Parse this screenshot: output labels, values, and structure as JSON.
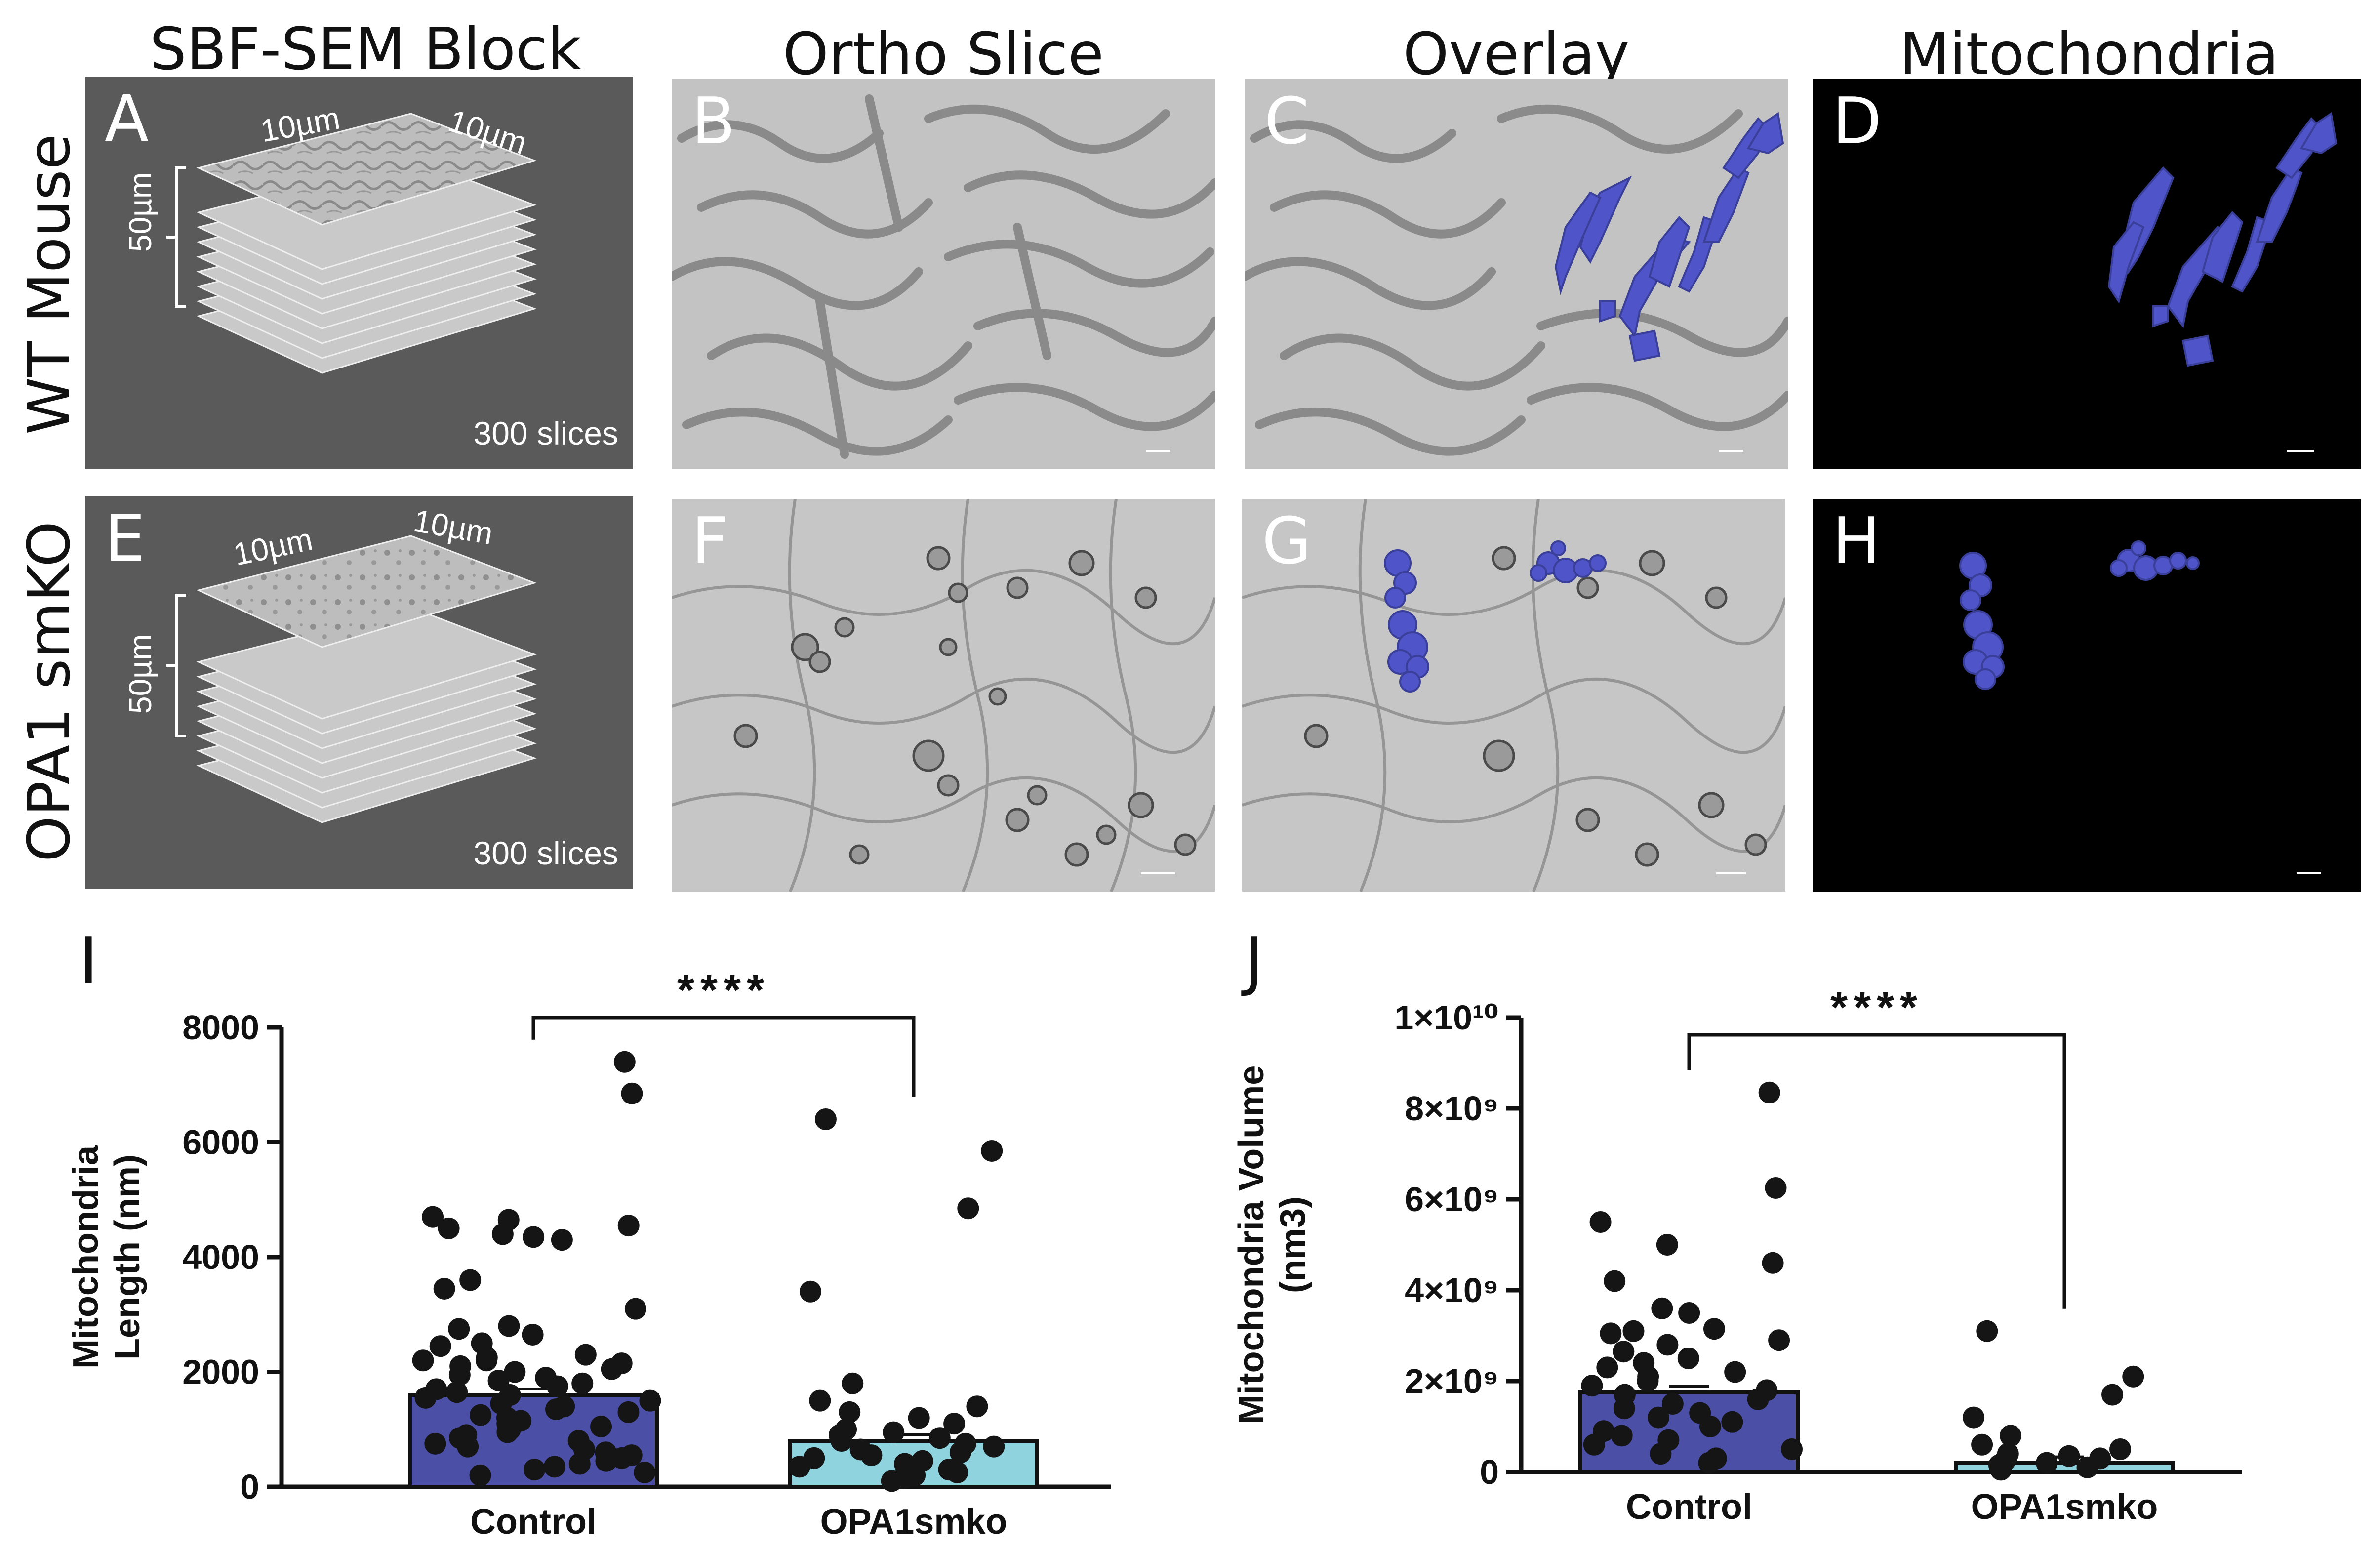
{
  "columns": [
    "SBF-SEM Block",
    "Ortho Slice",
    "Overlay",
    "Mitochondria"
  ],
  "rows": [
    "WT Mouse",
    "OPA1 smKO"
  ],
  "panels": {
    "A": "A",
    "B": "B",
    "C": "C",
    "D": "D",
    "E": "E",
    "F": "F",
    "G": "G",
    "H": "H"
  },
  "block": {
    "dim_x": "10µm",
    "dim_y": "10µm",
    "dim_z": "50µm",
    "slices": "300 slices"
  },
  "colors": {
    "mito": "#4f55c8",
    "control_bar": "#4b4fa6",
    "opa1_bar": "#8fd3df",
    "block_bg": "#5a5a5a",
    "em_gray": "#c4c4c4"
  },
  "chart_data": [
    {
      "panel": "I",
      "type": "bar",
      "categories": [
        "Control",
        "OPA1smko"
      ],
      "values": [
        1600,
        800
      ],
      "ylabel": "Mitochondria Length (nm)",
      "ylabel_lines": [
        "Mitochondria",
        "Length (nm)"
      ],
      "ylim": [
        0,
        8000
      ],
      "yticks": [
        "0",
        "2000",
        "4000",
        "6000",
        "8000"
      ],
      "significance": "****",
      "points": {
        "Control": [
          7400,
          6850,
          4700,
          4650,
          4550,
          4500,
          4400,
          4350,
          4300,
          3600,
          3450,
          3100,
          2800,
          2750,
          2650,
          2500,
          2450,
          2300,
          2250,
          2200,
          2200,
          2150,
          2100,
          2050,
          2000,
          1950,
          1900,
          1850,
          1800,
          1750,
          1700,
          1650,
          1600,
          1550,
          1500,
          1450,
          1400,
          1350,
          1300,
          1250,
          1200,
          1150,
          1100,
          1050,
          1000,
          950,
          900,
          850,
          800,
          750,
          700,
          650,
          600,
          550,
          500,
          450,
          400,
          350,
          300,
          250,
          200
        ],
        "OPA1smko": [
          6400,
          5850,
          4850,
          3400,
          1800,
          1500,
          1400,
          1300,
          1200,
          1100,
          1000,
          950,
          900,
          850,
          800,
          750,
          700,
          650,
          600,
          550,
          500,
          450,
          400,
          350,
          300,
          250,
          200,
          150,
          100
        ]
      }
    },
    {
      "panel": "J",
      "type": "bar",
      "categories": [
        "Control",
        "OPA1smko"
      ],
      "values": [
        1750000000,
        200000000
      ],
      "ylabel": "Mitochondria Volume (nm3)",
      "ylabel_lines": [
        "Mitochondria Volume",
        "(nm3)"
      ],
      "ylim": [
        0,
        10000000000
      ],
      "yticks": [
        "0",
        "2×10⁹",
        "4×10⁹",
        "6×10⁹",
        "8×10⁹",
        "1×10¹⁰"
      ],
      "significance": "****",
      "points": {
        "Control": [
          8350000000,
          6250000000,
          5500000000,
          5000000000,
          4600000000,
          4200000000,
          3600000000,
          3500000000,
          3150000000,
          3100000000,
          3050000000,
          2900000000,
          2800000000,
          2650000000,
          2500000000,
          2400000000,
          2300000000,
          2200000000,
          2100000000,
          2000000000,
          1900000000,
          1800000000,
          1700000000,
          1600000000,
          1500000000,
          1400000000,
          1300000000,
          1200000000,
          1100000000,
          1000000000,
          900000000,
          800000000,
          700000000,
          600000000,
          500000000,
          400000000,
          300000000,
          200000000
        ],
        "OPA1smko": [
          3100000000,
          2100000000,
          1700000000,
          1200000000,
          800000000,
          600000000,
          500000000,
          400000000,
          350000000,
          300000000,
          250000000,
          200000000,
          150000000,
          100000000,
          50000000
        ]
      }
    }
  ]
}
